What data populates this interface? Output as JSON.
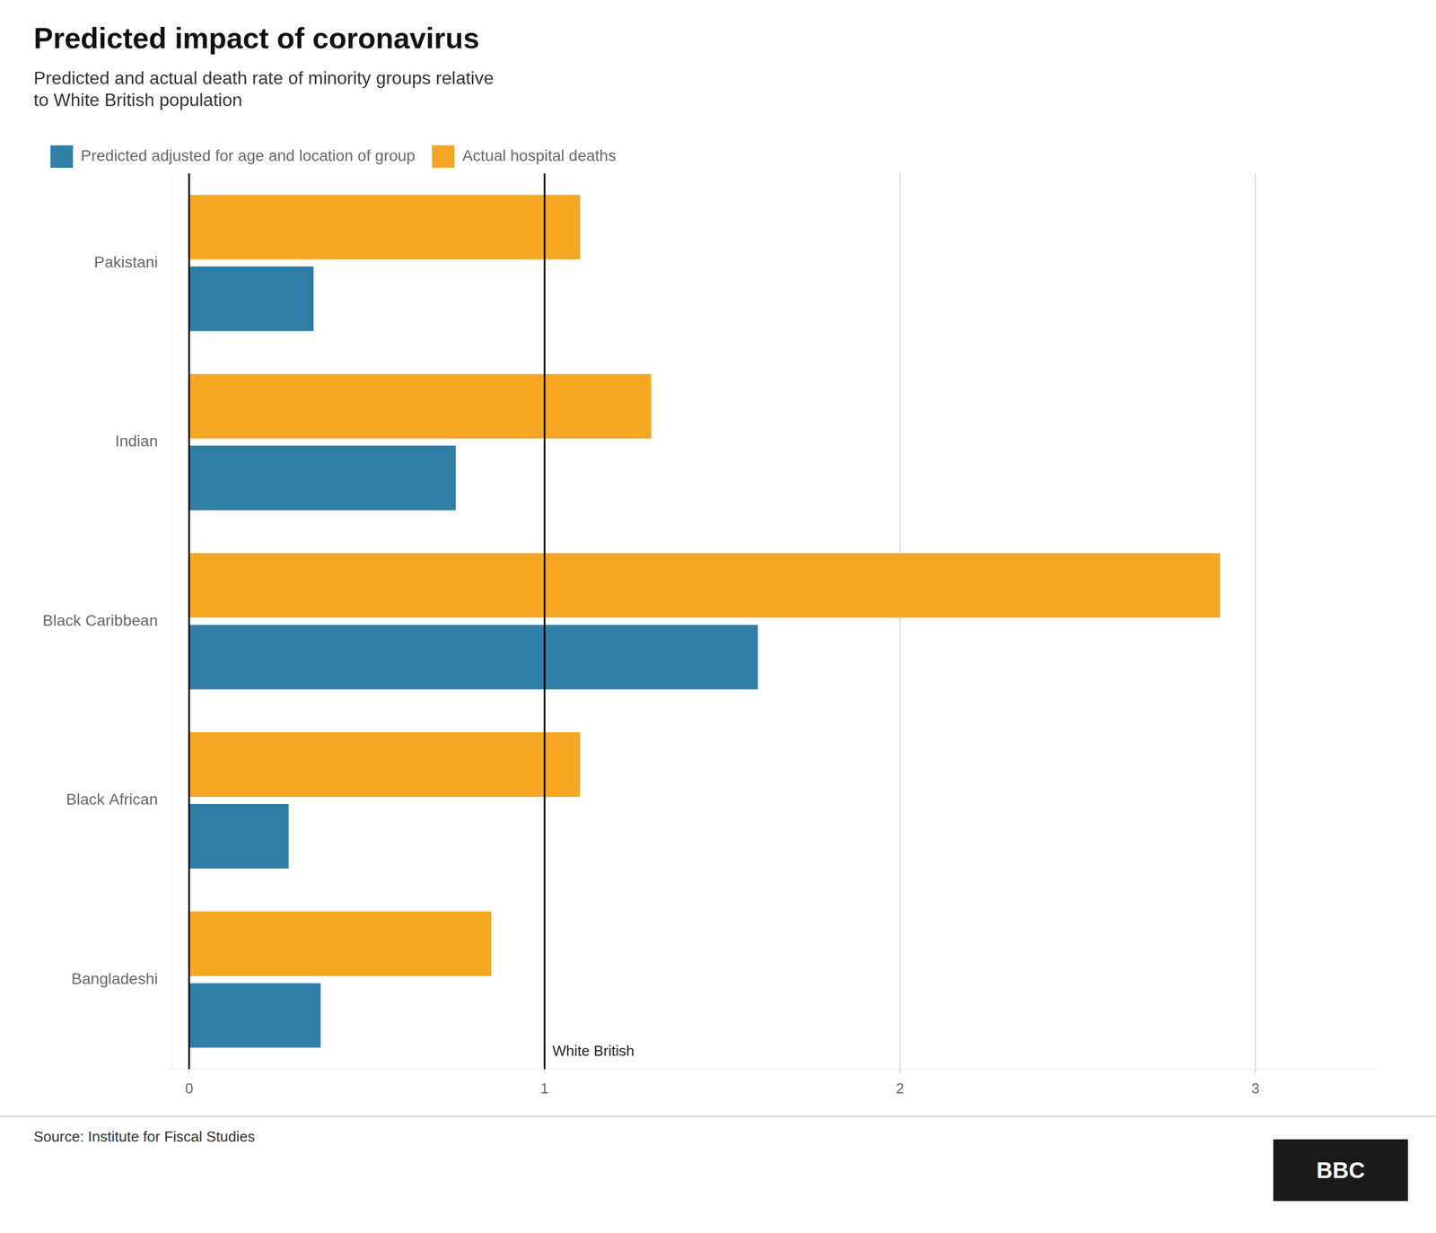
{
  "chart_data": {
    "type": "bar",
    "orientation": "horizontal",
    "title": "Predicted impact of coronavirus",
    "subtitle": "Predicted and actual death rate of minority groups relative\nto White British population",
    "categories": [
      "Pakistani",
      "Indian",
      "Black Caribbean",
      "Black African",
      "Bangladeshi"
    ],
    "series": [
      {
        "name": "Actual hospital deaths",
        "color": "#F5A623",
        "values": [
          1.1,
          1.3,
          2.9,
          1.1,
          0.85
        ]
      },
      {
        "name": "Predicted adjusted for age and location of group",
        "color": "#2E7EA6",
        "values": [
          0.35,
          0.75,
          1.6,
          0.28,
          0.37
        ]
      }
    ],
    "xlim": [
      -0.05,
      3.35
    ],
    "xticks": [
      0,
      1,
      2,
      3
    ],
    "grid": true,
    "legend": "upper left",
    "vlines": [
      {
        "value": 0,
        "color": "#000000"
      },
      {
        "value": 1,
        "color": "#000000"
      }
    ],
    "annotations": [
      {
        "text": "White British",
        "x": 1
      }
    ],
    "source": "Source: Institute for Fiscal Studies",
    "logo": "BBC"
  }
}
